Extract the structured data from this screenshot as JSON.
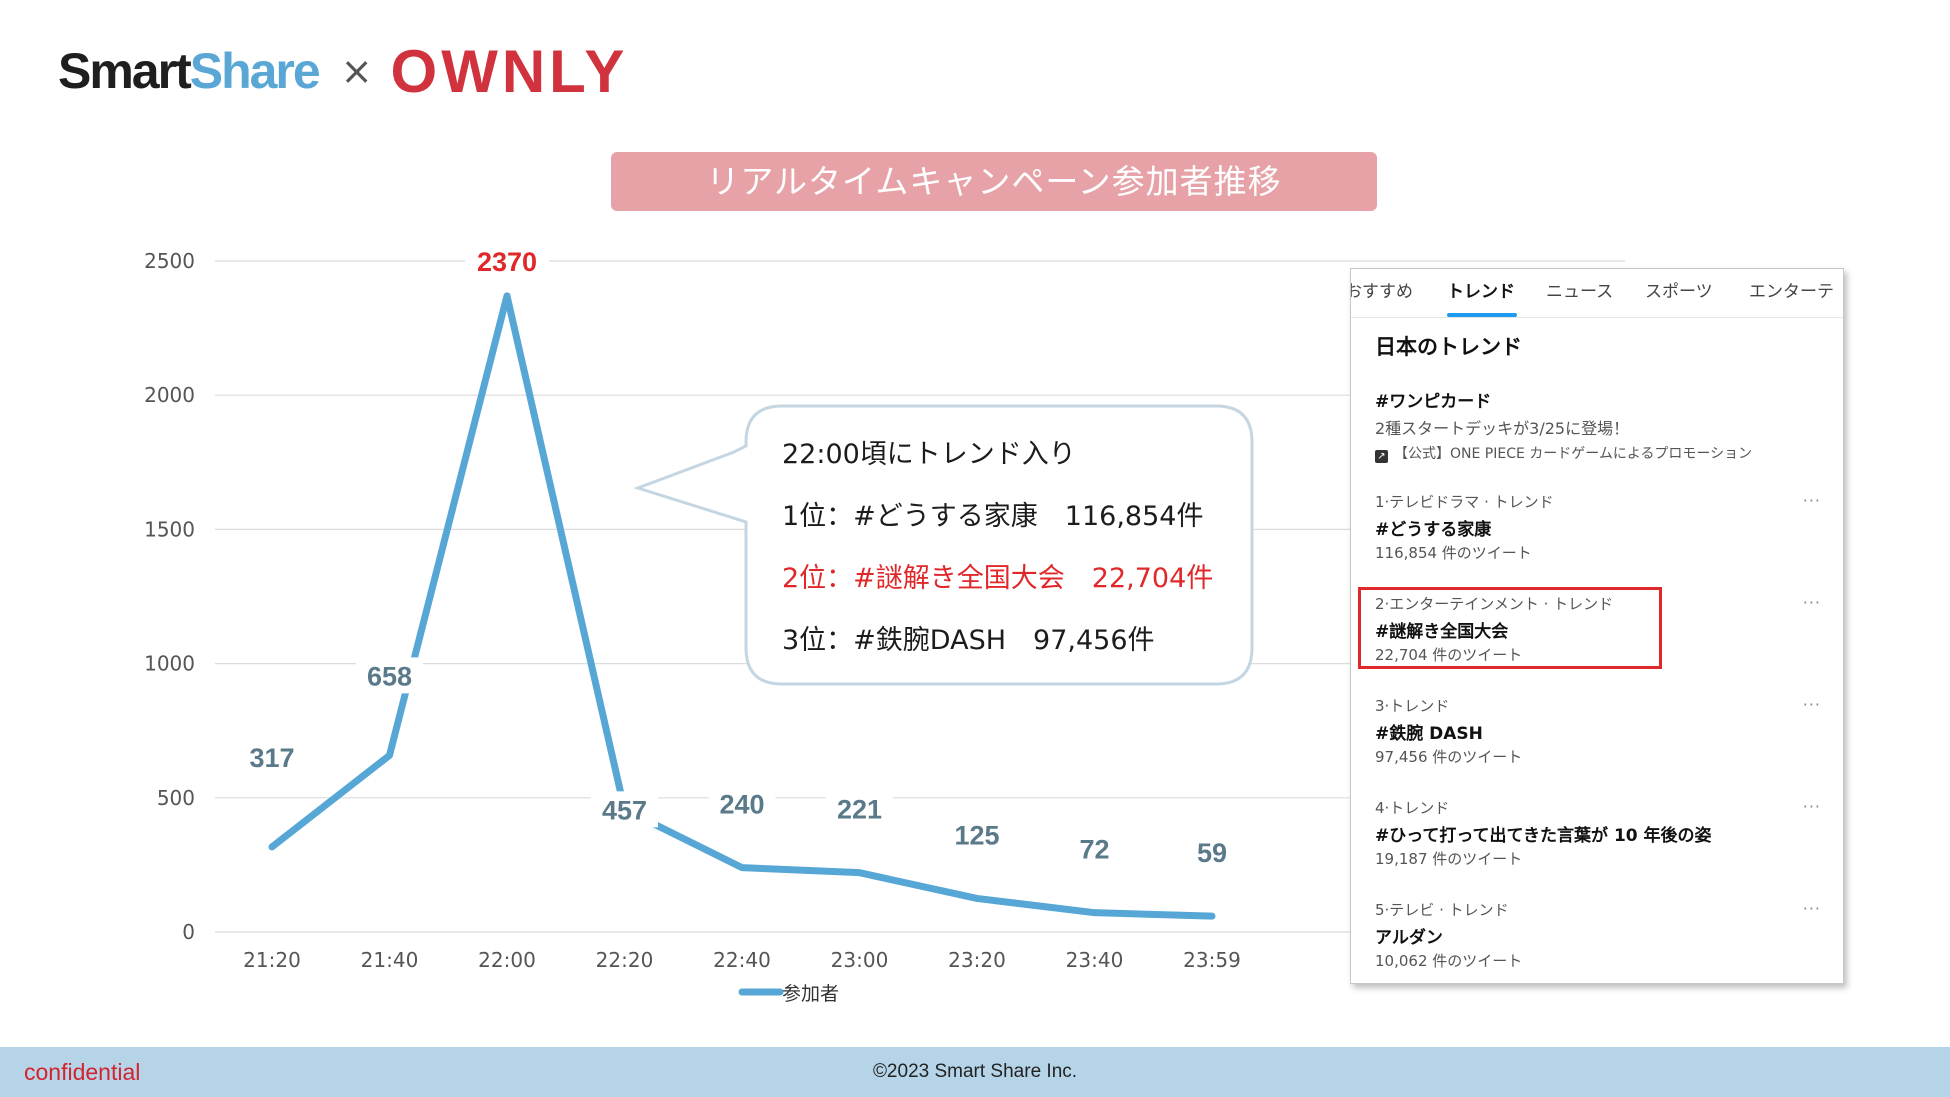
{
  "header": {
    "logo_smart": "Smart",
    "logo_share": "Share",
    "logo_times": "×",
    "logo_ownly": "OWNLY"
  },
  "chart_data": {
    "type": "line",
    "title": "リアルタイムキャンペーン参加者推移",
    "categories": [
      "21:20",
      "21:40",
      "22:00",
      "22:20",
      "22:40",
      "23:00",
      "23:20",
      "23:40",
      "23:59"
    ],
    "series": [
      {
        "name": "参加者",
        "values": [
          317,
          658,
          2370,
          457,
          240,
          221,
          125,
          72,
          59
        ],
        "color": "#56a7d6"
      }
    ],
    "data_labels": [
      "317",
      "658",
      "2370",
      "457",
      "240",
      "221",
      "125",
      "72",
      "59"
    ],
    "highlight_label_color": "#e0282a",
    "label_color": "#5a7a8a",
    "yticks": [
      "0",
      "500",
      "1000",
      "1500",
      "2000",
      "2500"
    ],
    "ylim": [
      0,
      2500
    ],
    "xlabel": "",
    "ylabel": "",
    "grid": true,
    "legend": "bottom",
    "legend_label": "参加者"
  },
  "callout": {
    "line1": "22:00頃にトレンド入り",
    "line2": "1位：#どうする家康　116,854件",
    "line3": "2位：#謎解き全国大会　22,704件",
    "line4": "3位：#鉄腕DASH　97,456件"
  },
  "trend_panel": {
    "tabs": [
      "おすすめ",
      "トレンド",
      "ニュース",
      "スポーツ",
      "エンターテ"
    ],
    "active_tab": "トレンド",
    "heading": "日本のトレンド",
    "promo": {
      "tag": "#ワンピカード",
      "desc": "2種スタートデッキが3/25に登場！",
      "by": "【公式】ONE PIECE カードゲームによるプロモーション"
    },
    "items": [
      {
        "meta": "1·テレビドラマ · トレンド",
        "name": "#どうする家康",
        "count": "116,854 件のツイート"
      },
      {
        "meta": "2·エンターテインメント · トレンド",
        "name": "#謎解き全国大会",
        "count": "22,704 件のツイート"
      },
      {
        "meta": "3·トレンド",
        "name": "#鉄腕 DASH",
        "count": "97,456 件のツイート"
      },
      {
        "meta": "4·トレンド",
        "name": "#ひって打って出てきた言葉が 10 年後の姿",
        "count": "19,187 件のツイート"
      },
      {
        "meta": "5·テレビ · トレンド",
        "name": "アルダン",
        "count": "10,062 件のツイート"
      }
    ],
    "more": "···"
  },
  "footer": {
    "confidential": "confidential",
    "copyright": "©2023 Smart Share Inc."
  },
  "colors": {
    "line": "#56a7d6",
    "accent_red": "#e0282a",
    "banner": "#e7a2a8",
    "footer": "#b5d4e8"
  }
}
